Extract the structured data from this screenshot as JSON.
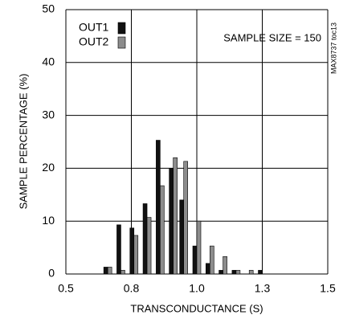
{
  "chart_data": {
    "type": "bar",
    "x_label": "TRANSCONDUCTANCE (S)",
    "y_label": "SAMPLE PERCENTAGE (%)",
    "annotation": "SAMPLE SIZE = 150",
    "side_label": "MAX8737 toc13",
    "x": [
      0.66,
      0.71,
      0.76,
      0.81,
      0.86,
      0.91,
      0.95,
      1.0,
      1.05,
      1.1,
      1.15,
      1.2,
      1.25
    ],
    "series": [
      {
        "name": "OUT1",
        "color": "#111111",
        "values": [
          1.3,
          9.3,
          8.7,
          13.3,
          25.3,
          20,
          14,
          5.3,
          2,
          0.7,
          0.7,
          0,
          0.7
        ]
      },
      {
        "name": "OUT2",
        "color": "#8c8c8c",
        "values": [
          1.3,
          0.7,
          7.3,
          10.7,
          16.7,
          22,
          21.3,
          10,
          5.3,
          3.3,
          0.7,
          0.7,
          0
        ]
      }
    ],
    "xlim": [
      0.5,
      1.5
    ],
    "xticks": [
      0.5,
      {
        "value": 0.75,
        "label": "0.8"
      },
      {
        "value": 1,
        "label": "1.0"
      },
      {
        "value": 1.25,
        "label": "1.3"
      },
      1.5
    ],
    "ylim": [
      0,
      50
    ],
    "yticks": [
      0,
      10,
      20,
      30,
      40,
      50
    ],
    "grid": true,
    "legend": "upper-left"
  }
}
